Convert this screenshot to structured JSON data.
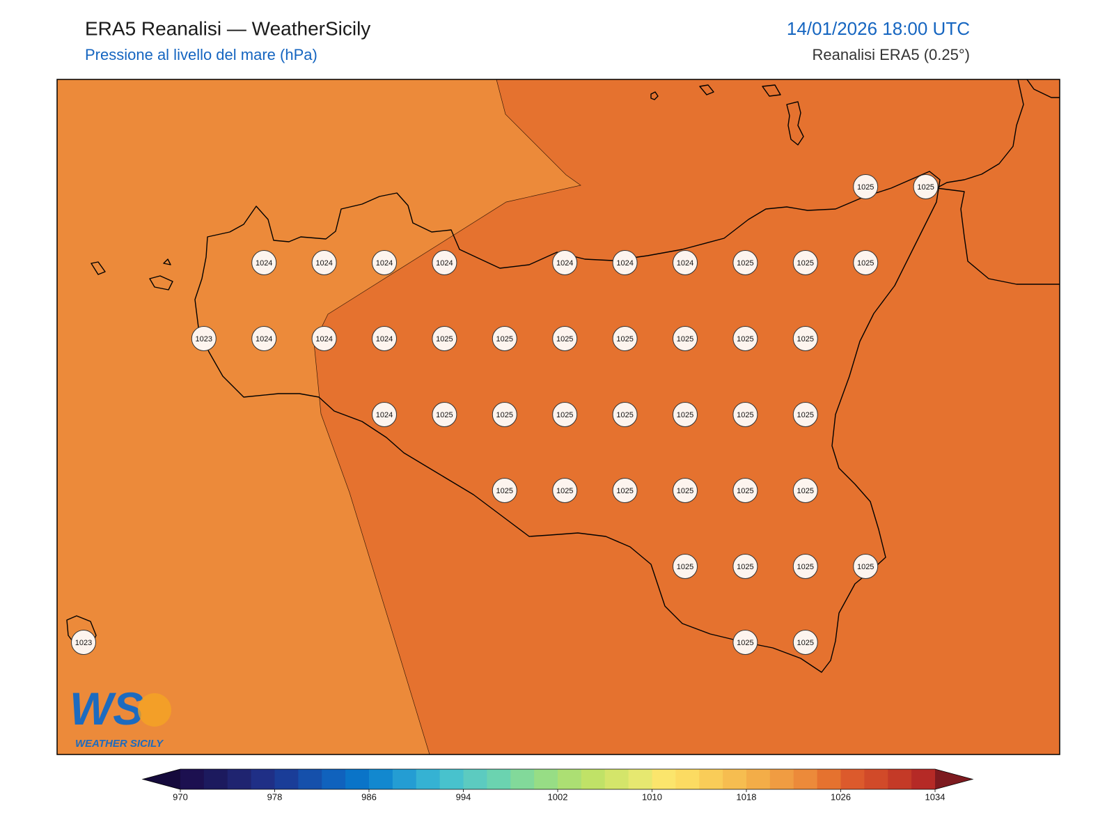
{
  "header": {
    "title": "ERA5 Reanalisi — WeatherSicily",
    "subtitle": "Pressione al livello del mare (hPa)",
    "datetime": "14/01/2026 18:00 UTC",
    "source": "Reanalisi ERA5 (0.25°)"
  },
  "logo": {
    "mark": "WS",
    "text": "WEATHER SICILY"
  },
  "stations": {
    "rows": [
      [
        null,
        null,
        null,
        null,
        null,
        null,
        null,
        null,
        null,
        null,
        null,
        null,
        null,
        1025,
        1025
      ],
      [
        null,
        null,
        null,
        1024,
        1024,
        1024,
        1024,
        null,
        1024,
        1024,
        1024,
        1025,
        1025,
        1025,
        null
      ],
      [
        null,
        null,
        1023,
        1024,
        1024,
        1024,
        1025,
        1025,
        1025,
        1025,
        1025,
        1025,
        1025,
        null,
        null
      ],
      [
        null,
        null,
        null,
        null,
        null,
        1024,
        1025,
        1025,
        1025,
        1025,
        1025,
        1025,
        1025,
        null,
        null
      ],
      [
        null,
        null,
        null,
        null,
        null,
        null,
        null,
        1025,
        1025,
        1025,
        1025,
        1025,
        1025,
        null,
        null
      ],
      [
        null,
        null,
        null,
        null,
        null,
        null,
        null,
        null,
        null,
        null,
        1025,
        1025,
        1025,
        1025,
        null
      ],
      [
        1023,
        null,
        null,
        null,
        null,
        null,
        null,
        null,
        null,
        null,
        null,
        1025,
        1025,
        null,
        null
      ]
    ]
  },
  "colorbar": {
    "lim": [
      970,
      1034
    ],
    "ticks": [
      970,
      978,
      986,
      994,
      1002,
      1010,
      1018,
      1026,
      1034
    ],
    "under": "#150a3c",
    "over": "#7d1a1f",
    "colors": [
      "#1c1050",
      "#1c1a5e",
      "#1f2470",
      "#1f2f86",
      "#1a3d98",
      "#1550ab",
      "#1062bd",
      "#0a74c8",
      "#1288cf",
      "#249dd3",
      "#35b2d3",
      "#48c2cd",
      "#5ccbc0",
      "#6bd3b0",
      "#82d99a",
      "#97dd85",
      "#acdf73",
      "#c0e267",
      "#d4e56a",
      "#e6e870",
      "#fbe56c",
      "#fcdb62",
      "#f9cc58",
      "#f6bd50",
      "#f3ad48",
      "#f09c42",
      "#ec8a3a",
      "#e5722f",
      "#dc5a2c",
      "#d14a29",
      "#c43a27",
      "#b52a26"
    ]
  }
}
